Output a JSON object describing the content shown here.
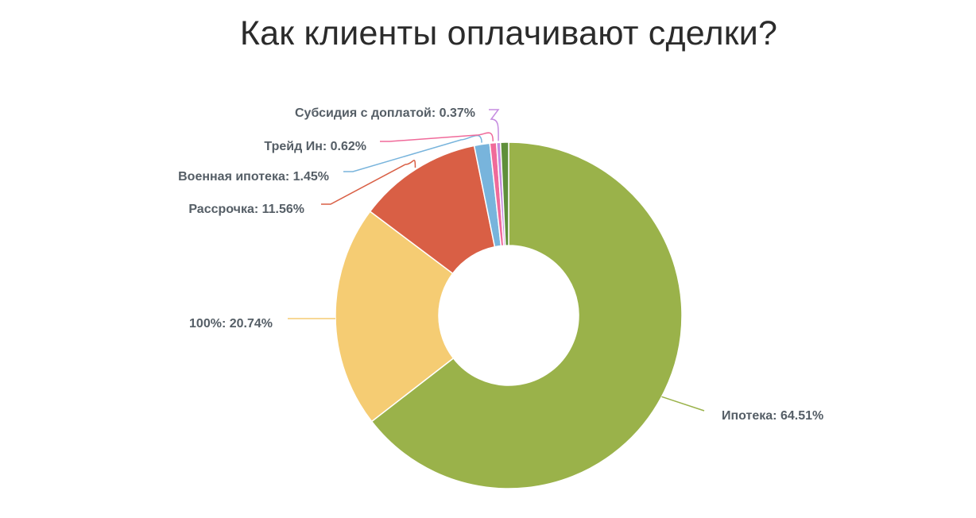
{
  "chart_data": {
    "type": "pie",
    "title": "Как клиенты оплачивают сделки?",
    "slices": [
      {
        "label": "Ипотека: 64.51%",
        "value": 64.51,
        "color": "#9ab24a"
      },
      {
        "label": "100%: 20.74%",
        "value": 20.74,
        "color": "#f5cc73"
      },
      {
        "label": "Рассрочка: 11.56%",
        "value": 11.56,
        "color": "#d95f45"
      },
      {
        "label": "Военная ипотека: 1.45%",
        "value": 1.45,
        "color": "#78b4dc"
      },
      {
        "label": "Трейд Ин: 0.62%",
        "value": 0.62,
        "color": "#f06a9a"
      },
      {
        "label": "Субсидия с доплатой: 0.37%",
        "value": 0.37,
        "color": "#c58ce0"
      },
      {
        "label": "",
        "value": 0.75,
        "color": "#5f8f3a"
      }
    ]
  }
}
